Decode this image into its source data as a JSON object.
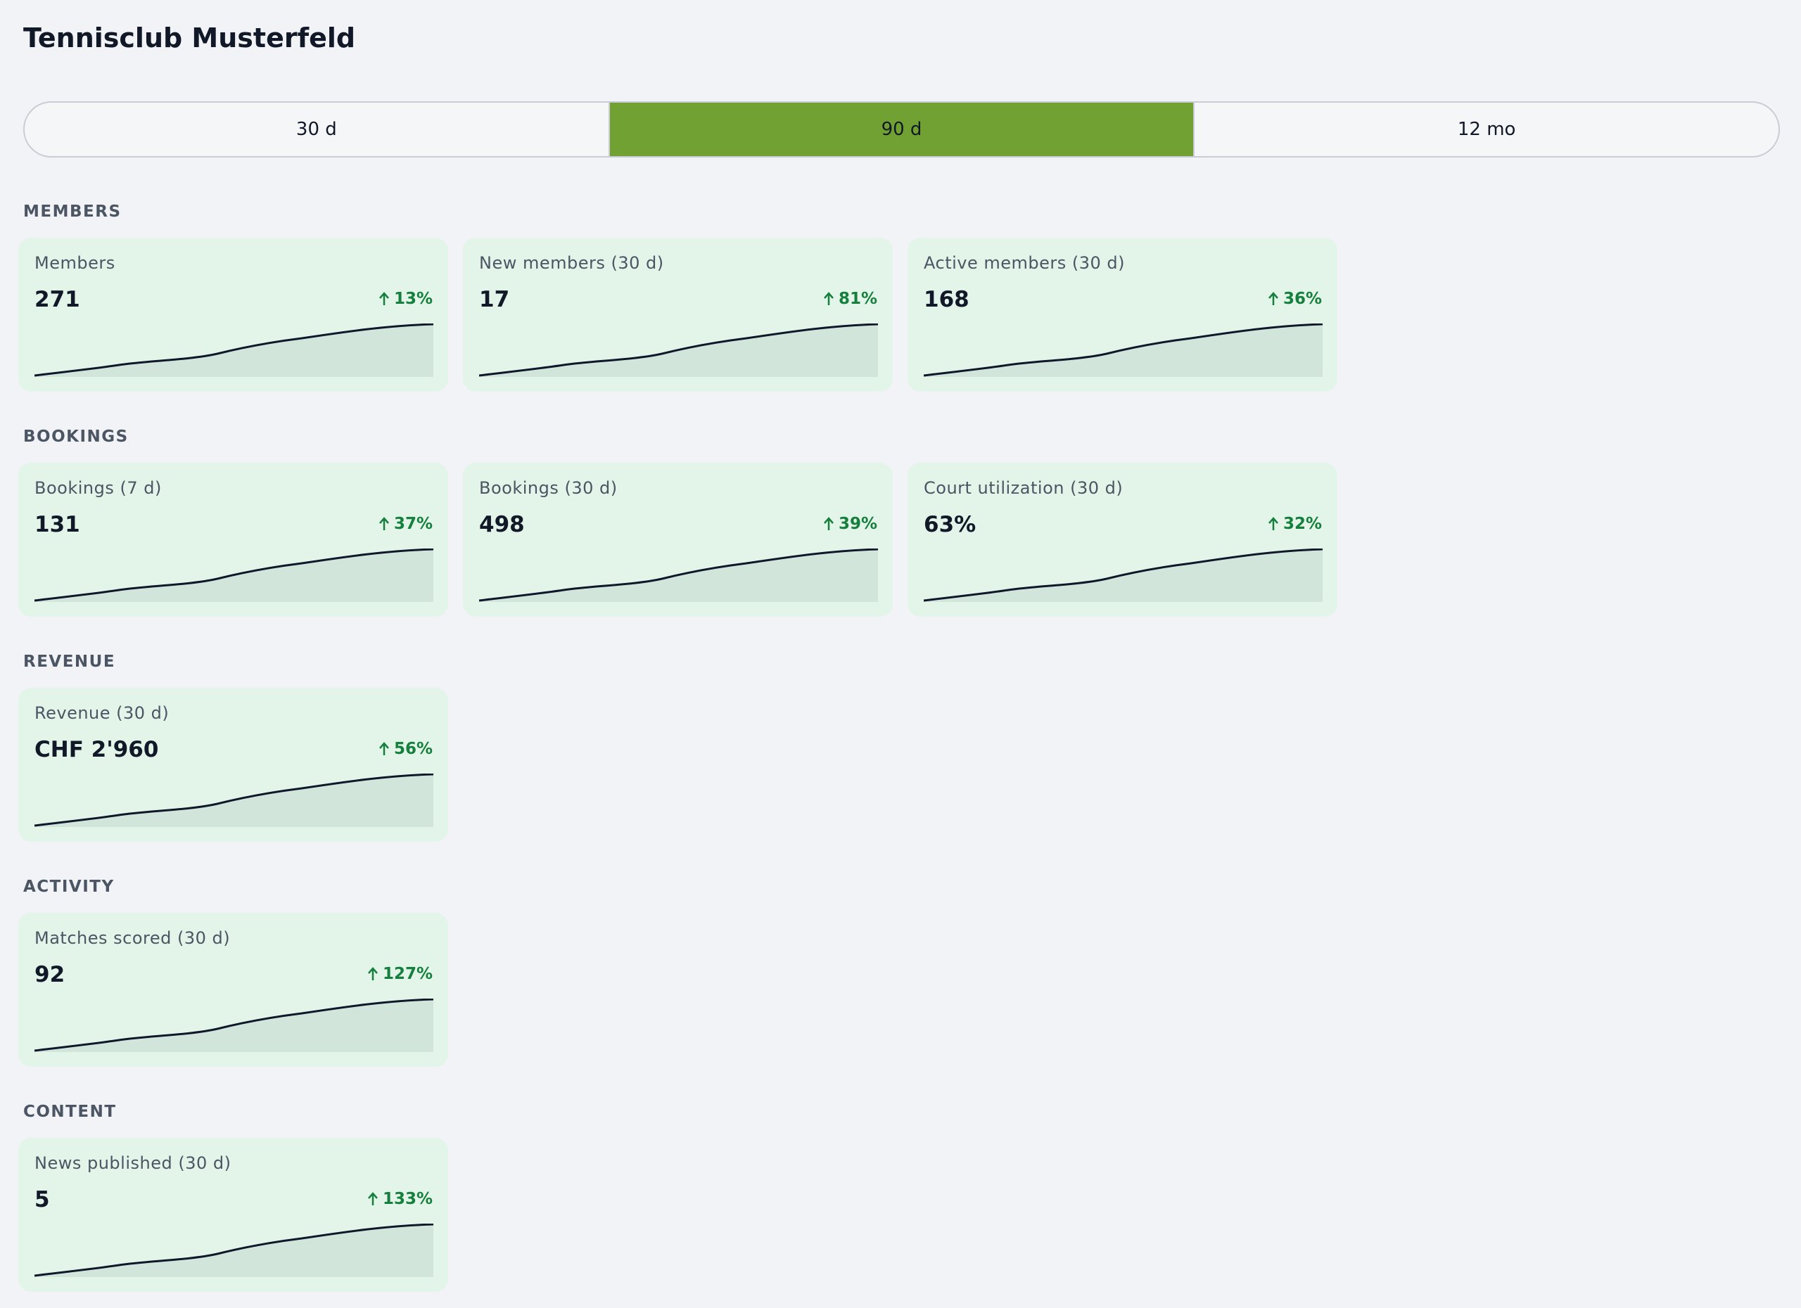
{
  "header": {
    "title": "Tennisclub Musterfeld"
  },
  "range_selector": {
    "options": [
      "30 d",
      "90 d",
      "12 mo"
    ],
    "selected": 1
  },
  "sections": [
    {
      "title": "MEMBERS",
      "cards": [
        {
          "label": "Members",
          "value": "271",
          "delta": "13%"
        },
        {
          "label": "New members (30 d)",
          "value": "17",
          "delta": "81%"
        },
        {
          "label": "Active members (30 d)",
          "value": "168",
          "delta": "36%"
        }
      ]
    },
    {
      "title": "BOOKINGS",
      "cards": [
        {
          "label": "Bookings (7 d)",
          "value": "131",
          "delta": "37%"
        },
        {
          "label": "Bookings (30 d)",
          "value": "498",
          "delta": "39%"
        },
        {
          "label": "Court utilization (30 d)",
          "value": "63%",
          "delta": "32%"
        }
      ]
    },
    {
      "title": "REVENUE",
      "cards": [
        {
          "label": "Revenue (30 d)",
          "value": "CHF 2'960",
          "delta": "56%"
        }
      ]
    },
    {
      "title": "ACTIVITY",
      "cards": [
        {
          "label": "Matches scored (30 d)",
          "value": "92",
          "delta": "127%"
        }
      ]
    },
    {
      "title": "CONTENT",
      "cards": [
        {
          "label": "News published (30 d)",
          "value": "5",
          "delta": "133%"
        }
      ]
    }
  ]
}
